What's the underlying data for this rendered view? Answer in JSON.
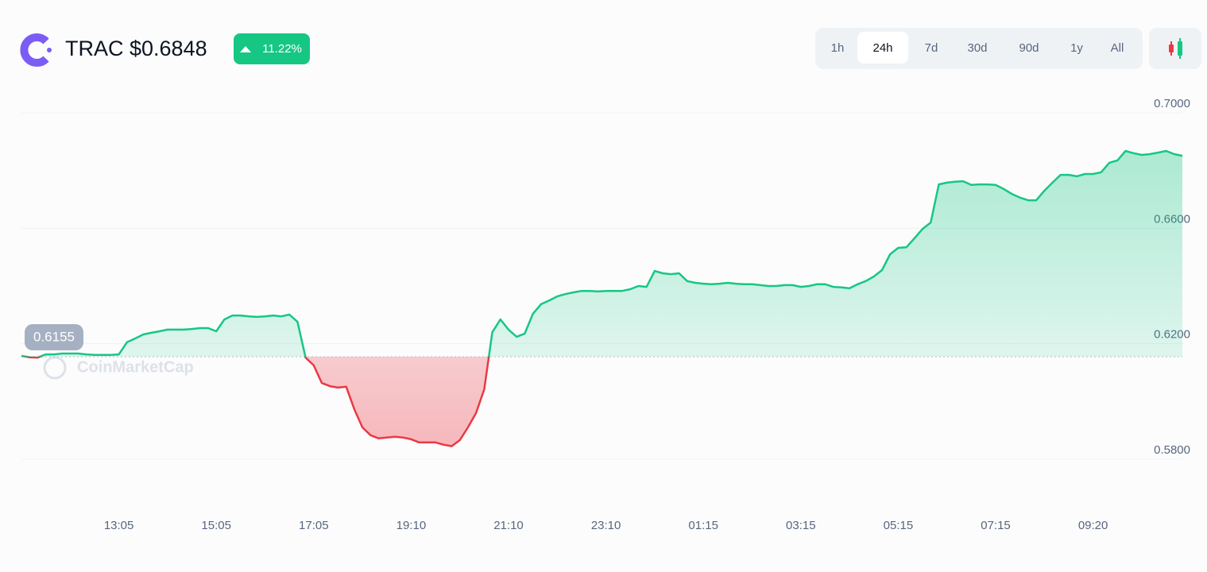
{
  "chart_data": {
    "type": "line",
    "title": "TRAC $0.6848",
    "change": "11.22%",
    "ranges": [
      "1h",
      "24h",
      "7d",
      "30d",
      "90d",
      "1y",
      "All"
    ],
    "active_range": "24h",
    "watermark": "CoinMarketCap",
    "baseline": 0.6155,
    "colors": {
      "up": "#16c784",
      "down": "#ea3943"
    },
    "ylim": [
      0.58,
      0.7
    ],
    "yticks": [
      {
        "value": 0.58,
        "label": "0.5800"
      },
      {
        "value": 0.62,
        "label": "0.6200"
      },
      {
        "value": 0.66,
        "label": "0.6600"
      },
      {
        "value": 0.7,
        "label": "0.7000"
      }
    ],
    "grid": true,
    "categories": [
      null,
      null,
      null,
      null,
      null,
      null,
      null,
      null,
      null,
      null,
      null,
      null,
      "13:05",
      null,
      null,
      null,
      null,
      null,
      null,
      null,
      null,
      null,
      null,
      null,
      "15:05",
      null,
      null,
      null,
      null,
      null,
      null,
      null,
      null,
      null,
      null,
      null,
      "17:05",
      null,
      null,
      null,
      null,
      null,
      null,
      null,
      null,
      null,
      null,
      null,
      "19:10",
      null,
      null,
      null,
      null,
      null,
      null,
      null,
      null,
      null,
      null,
      null,
      "21:10",
      null,
      null,
      null,
      null,
      null,
      null,
      null,
      null,
      null,
      null,
      null,
      "23:10",
      null,
      null,
      null,
      null,
      null,
      null,
      null,
      null,
      null,
      null,
      null,
      "01:15",
      null,
      null,
      null,
      null,
      null,
      null,
      null,
      null,
      null,
      null,
      null,
      "03:15",
      null,
      null,
      null,
      null,
      null,
      null,
      null,
      null,
      null,
      null,
      null,
      "05:15",
      null,
      null,
      null,
      null,
      null,
      null,
      null,
      null,
      null,
      null,
      null,
      "07:15",
      null,
      null,
      null,
      null,
      null,
      null,
      null,
      null,
      null,
      null,
      null,
      "09:20",
      null,
      null,
      null,
      null,
      null,
      null,
      null,
      null,
      null,
      null,
      null
    ],
    "values": [
      0.6158,
      0.6153,
      0.6152,
      0.6163,
      0.6163,
      0.6166,
      0.6166,
      0.6166,
      0.6163,
      0.6161,
      0.6161,
      0.6161,
      0.6163,
      0.6205,
      0.6218,
      0.6232,
      0.6238,
      0.6243,
      0.6249,
      0.6249,
      0.6249,
      0.6251,
      0.6254,
      0.6254,
      0.6243,
      0.6284,
      0.6298,
      0.6298,
      0.6295,
      0.6293,
      0.6295,
      0.6298,
      0.6295,
      0.6301,
      0.6276,
      0.6152,
      0.6125,
      0.6064,
      0.6053,
      0.6048,
      0.6051,
      0.5973,
      0.591,
      0.5883,
      0.5872,
      0.5875,
      0.5878,
      0.5875,
      0.5869,
      0.5858,
      0.5858,
      0.5858,
      0.585,
      0.5845,
      0.5866,
      0.591,
      0.596,
      0.6042,
      0.624,
      0.6284,
      0.6249,
      0.6224,
      0.6235,
      0.6304,
      0.6337,
      0.635,
      0.6364,
      0.6372,
      0.6378,
      0.6383,
      0.6383,
      0.6381,
      0.6383,
      0.6383,
      0.6383,
      0.6389,
      0.64,
      0.6397,
      0.6452,
      0.6444,
      0.6441,
      0.6444,
      0.6417,
      0.6411,
      0.6408,
      0.6406,
      0.6408,
      0.6411,
      0.6408,
      0.6406,
      0.6406,
      0.6403,
      0.64,
      0.64,
      0.6403,
      0.6403,
      0.6397,
      0.64,
      0.6406,
      0.6406,
      0.6397,
      0.6395,
      0.6392,
      0.6406,
      0.6417,
      0.6433,
      0.6455,
      0.651,
      0.6532,
      0.6534,
      0.6565,
      0.6598,
      0.662,
      0.6752,
      0.6758,
      0.6761,
      0.6763,
      0.675,
      0.6752,
      0.6752,
      0.675,
      0.6736,
      0.6719,
      0.6706,
      0.6697,
      0.6697,
      0.673,
      0.6758,
      0.6785,
      0.6785,
      0.678,
      0.6788,
      0.6788,
      0.6794,
      0.6827,
      0.6835,
      0.6868,
      0.686,
      0.6854,
      0.6857,
      0.6862,
      0.6868,
      0.6857,
      0.6851
    ]
  }
}
